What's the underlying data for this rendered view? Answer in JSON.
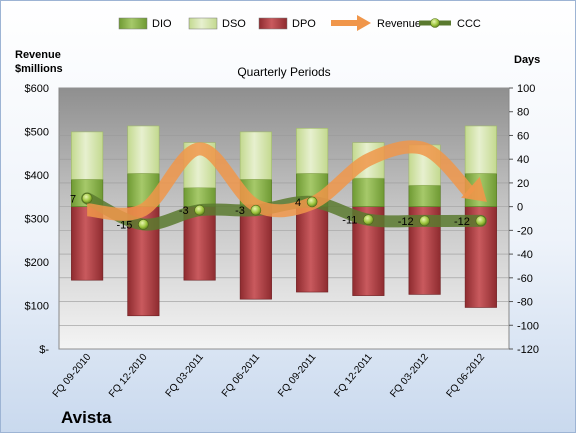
{
  "chart_data": {
    "type": "bar",
    "title": "Quarterly Periods",
    "company": "Avista",
    "categories": [
      "FQ 09-2010",
      "FQ 12-2010",
      "FQ 03-2011",
      "FQ 06-2011",
      "FQ 09-2011",
      "FQ 12-2011",
      "FQ 03-2012",
      "FQ 06-2012"
    ],
    "left_axis": {
      "label_line1": "Revenue",
      "label_line2": "$millions",
      "min": 0,
      "max": 600,
      "step": 100,
      "tick_labels": [
        "$-",
        "$100",
        "$200",
        "$300",
        "$400",
        "$500",
        "$600"
      ]
    },
    "right_axis": {
      "label": "Days",
      "min": -120,
      "max": 100,
      "step": 20,
      "tick_labels": [
        "-120",
        "-100",
        "-80",
        "-60",
        "-40",
        "-20",
        "0",
        "20",
        "40",
        "60",
        "80",
        "100"
      ]
    },
    "series": [
      {
        "name": "DIO",
        "axis": "right",
        "values": [
          23,
          28,
          16,
          23,
          28,
          24,
          18,
          28
        ],
        "color": "#8cb34a"
      },
      {
        "name": "DSO",
        "axis": "right",
        "values": [
          40,
          40,
          38,
          40,
          38,
          30,
          34,
          40
        ],
        "color": "#d6e5b0"
      },
      {
        "name": "DPO",
        "axis": "right",
        "values": [
          -62,
          -92,
          -62,
          -78,
          -72,
          -75,
          -74,
          -85
        ],
        "color": "#a8393d"
      },
      {
        "name": "Revenue",
        "axis": "left",
        "values": [
          320,
          320,
          460,
          330,
          335,
          435,
          460,
          345
        ],
        "color": "#f0964a"
      },
      {
        "name": "CCC",
        "axis": "right",
        "values": [
          7,
          -15,
          -3,
          -3,
          4,
          -11,
          -12,
          -12
        ],
        "color": "#5a7a2f"
      }
    ],
    "ccc_labels": [
      "7",
      "-15",
      "-3",
      "-3",
      "4",
      "-11",
      "-12",
      "-12"
    ],
    "legend": {
      "position": "top"
    },
    "grid": true
  }
}
